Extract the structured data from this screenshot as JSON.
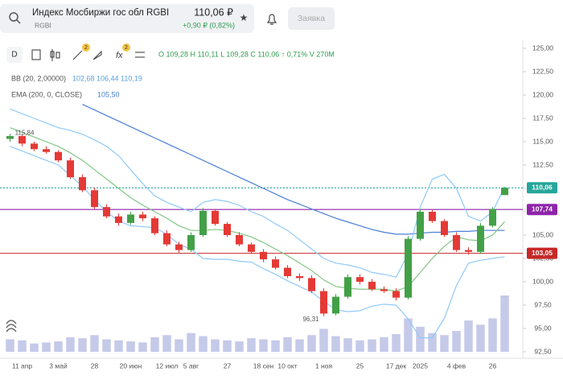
{
  "header": {
    "title": "Индекс Мосбиржи гос обл RGBI",
    "ticker": "RGBI",
    "price": "110,06 ₽",
    "change": "+0,90 ₽ (0,82%)",
    "button": "Заявка"
  },
  "toolbar": {
    "interval": "D",
    "ohlc": "O 109,28 H 110,11 L 109,28 C 110,06 ↑ 0,71% V 270M",
    "bb_name": "BB (20, 2,00000)",
    "bb_values": "102,68 106,44 110,19",
    "ema_name": "EMA (200, 0, CLOSE)",
    "ema_value": "105,50"
  },
  "chart_data": {
    "type": "candlestick",
    "categories": [
      null,
      "11 апр",
      null,
      null,
      "3 май",
      null,
      null,
      "28",
      null,
      null,
      "20 июн",
      null,
      null,
      "12 июл",
      null,
      "5 авг",
      null,
      null,
      "27",
      null,
      null,
      "18 сен",
      null,
      "10 окт",
      null,
      null,
      "1 ноя",
      null,
      null,
      "25",
      null,
      null,
      "17 дек",
      null,
      "2025",
      null,
      null,
      "4 фев",
      null,
      null,
      "26",
      null
    ],
    "open": [
      115.3,
      115.6,
      114.8,
      114.2,
      113.9,
      113.0,
      111.2,
      109.8,
      108.0,
      107.0,
      106.3,
      107.2,
      106.8,
      105.2,
      104.0,
      103.4,
      105.0,
      107.6,
      106.2,
      105.0,
      104.0,
      103.2,
      102.4,
      101.5,
      100.6,
      100.4,
      99.0,
      96.6,
      98.4,
      100.5,
      100.0,
      99.2,
      99.0,
      98.3,
      104.6,
      107.5,
      106.5,
      105.0,
      103.4,
      103.2,
      106.0,
      109.28
    ],
    "high": [
      115.84,
      115.8,
      115.0,
      114.5,
      114.1,
      113.3,
      111.5,
      110.1,
      108.3,
      107.3,
      107.5,
      107.5,
      107.0,
      105.5,
      104.3,
      105.3,
      107.9,
      107.8,
      106.4,
      105.3,
      104.2,
      103.5,
      102.7,
      101.8,
      100.9,
      100.7,
      99.3,
      98.7,
      100.8,
      100.8,
      100.3,
      99.5,
      99.3,
      104.9,
      107.8,
      107.7,
      106.7,
      105.3,
      103.7,
      106.3,
      108.0,
      110.11
    ],
    "low": [
      115.0,
      114.5,
      114.0,
      113.7,
      112.8,
      111.0,
      109.6,
      107.8,
      106.8,
      106.0,
      106.1,
      106.5,
      105.0,
      103.8,
      103.1,
      103.2,
      104.8,
      106.0,
      104.8,
      103.8,
      103.0,
      102.1,
      101.3,
      100.4,
      100.1,
      98.8,
      96.31,
      96.4,
      98.2,
      99.7,
      99.0,
      98.8,
      98.0,
      98.1,
      104.4,
      106.3,
      104.8,
      103.2,
      102.9,
      103.0,
      105.8,
      109.28
    ],
    "close": [
      115.6,
      114.8,
      114.2,
      113.9,
      113.0,
      111.2,
      109.8,
      108.0,
      107.0,
      106.3,
      107.2,
      106.8,
      105.2,
      104.0,
      103.4,
      105.0,
      107.6,
      106.2,
      105.0,
      104.0,
      103.2,
      102.4,
      101.5,
      100.6,
      100.4,
      99.0,
      96.6,
      98.4,
      100.5,
      100.0,
      99.2,
      99.0,
      98.3,
      104.6,
      107.5,
      106.5,
      105.0,
      103.4,
      103.2,
      106.0,
      107.8,
      110.06
    ],
    "volume": [
      60,
      55,
      40,
      45,
      50,
      70,
      65,
      80,
      60,
      55,
      50,
      45,
      70,
      80,
      60,
      90,
      75,
      60,
      55,
      50,
      65,
      60,
      55,
      70,
      60,
      80,
      110,
      75,
      65,
      55,
      60,
      70,
      85,
      160,
      120,
      90,
      80,
      100,
      150,
      130,
      160,
      270
    ],
    "up_color": "#43a047",
    "down_color": "#e53935",
    "volume_color": "#c5cae9",
    "series": [
      {
        "name": "EMA",
        "color": "#4a7fd6",
        "values": [
          null,
          null,
          null,
          null,
          null,
          null,
          119.0,
          118.4,
          117.8,
          117.2,
          116.6,
          116.0,
          115.4,
          114.8,
          114.2,
          113.6,
          113.0,
          112.4,
          111.8,
          111.2,
          110.6,
          110.0,
          109.4,
          108.8,
          108.3,
          107.8,
          107.3,
          106.8,
          106.4,
          106.0,
          105.6,
          105.3,
          105.1,
          105.1,
          105.2,
          105.3,
          105.3,
          105.4,
          105.4,
          105.5,
          105.5,
          105.5
        ]
      },
      {
        "name": "BB upper",
        "color": "#90caf9",
        "values": [
          118.5,
          118.0,
          117.5,
          117.0,
          116.5,
          116.2,
          115.8,
          115.2,
          114.5,
          113.5,
          112.0,
          110.5,
          109.2,
          108.5,
          108.0,
          107.5,
          108.5,
          108.8,
          108.6,
          108.2,
          107.5,
          107.0,
          106.2,
          105.5,
          104.5,
          103.5,
          102.5,
          102.0,
          101.8,
          101.5,
          101.0,
          100.8,
          100.5,
          103.0,
          108.0,
          111.0,
          111.5,
          110.0,
          107.0,
          106.5,
          107.5,
          110.19
        ]
      },
      {
        "name": "BB basis",
        "color": "#81c784",
        "values": [
          116.5,
          116.0,
          115.5,
          115.0,
          114.5,
          113.8,
          113.0,
          112.0,
          111.0,
          110.0,
          109.0,
          108.2,
          107.5,
          106.8,
          106.0,
          105.5,
          105.5,
          105.6,
          105.5,
          105.2,
          104.8,
          104.2,
          103.5,
          102.8,
          102.0,
          101.2,
          100.2,
          99.5,
          99.3,
          99.2,
          99.2,
          99.2,
          99.0,
          99.5,
          101.0,
          102.5,
          103.8,
          104.8,
          104.5,
          104.4,
          105.0,
          106.44
        ]
      },
      {
        "name": "BB lower",
        "color": "#90caf9",
        "values": [
          114.5,
          114.0,
          113.5,
          113.0,
          112.5,
          111.4,
          110.2,
          108.8,
          107.5,
          106.5,
          106.0,
          105.9,
          105.8,
          105.1,
          104.0,
          103.5,
          102.5,
          102.4,
          102.4,
          102.2,
          102.1,
          101.4,
          100.8,
          100.1,
          99.5,
          98.9,
          97.9,
          97.0,
          96.8,
          96.9,
          97.4,
          97.6,
          97.5,
          96.0,
          94.0,
          94.0,
          96.1,
          99.6,
          102.0,
          102.3,
          102.5,
          102.68
        ]
      }
    ],
    "levels": [
      {
        "value": 110.06,
        "label": "110,06",
        "color": "#26a69a",
        "dash": "2 2"
      },
      {
        "value": 107.74,
        "label": "107,74",
        "color": "#8e24aa",
        "dash": ""
      },
      {
        "value": 103.05,
        "label": "103,05",
        "color": "#c62828",
        "dash": ""
      }
    ],
    "annotations": [
      {
        "value": 115.84,
        "label": "115,84"
      },
      {
        "value": 96.31,
        "label": "96,31"
      }
    ],
    "ylim": [
      92.5,
      125
    ],
    "yticks": [
      {
        "value": 92.5,
        "label": "92,50"
      },
      {
        "value": 95,
        "label": "95,00"
      },
      {
        "value": 97.5,
        "label": "97,50"
      },
      {
        "value": 100,
        "label": "100,00"
      },
      {
        "value": 102.5,
        "label": "102,50"
      },
      {
        "value": 105,
        "label": "105,00"
      },
      {
        "value": 107.5,
        "label": "107,50"
      },
      {
        "value": 110,
        "label": "110,00"
      },
      {
        "value": 112.5,
        "label": "112,50"
      },
      {
        "value": 115,
        "label": "115,00"
      },
      {
        "value": 117.5,
        "label": "117,50"
      },
      {
        "value": 120,
        "label": "120,00"
      },
      {
        "value": 122.5,
        "label": "122,50"
      },
      {
        "value": 125,
        "label": "125,00"
      }
    ],
    "grid": false
  }
}
